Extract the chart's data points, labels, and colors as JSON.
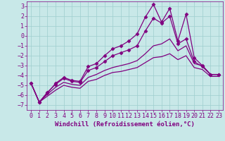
{
  "xlabel": "Windchill (Refroidissement éolien,°C)",
  "xlim": [
    -0.5,
    23.5
  ],
  "ylim": [
    -7.5,
    3.5
  ],
  "xticks": [
    0,
    1,
    2,
    3,
    4,
    5,
    6,
    7,
    8,
    9,
    10,
    11,
    12,
    13,
    14,
    15,
    16,
    17,
    18,
    19,
    20,
    21,
    22,
    23
  ],
  "yticks": [
    -7,
    -6,
    -5,
    -4,
    -3,
    -2,
    -1,
    0,
    1,
    2,
    3
  ],
  "background_color": "#c8e8e8",
  "grid_color": "#9ecece",
  "line_color": "#800080",
  "lines": [
    {
      "x": [
        0,
        1,
        2,
        3,
        4,
        5,
        6,
        7,
        8,
        9,
        10,
        11,
        12,
        13,
        14,
        15,
        16,
        17,
        18,
        19,
        20,
        21,
        22,
        23
      ],
      "y": [
        -4.8,
        -6.7,
        -5.8,
        -4.8,
        -4.2,
        -4.5,
        -4.6,
        -3.1,
        -2.8,
        -2.0,
        -1.3,
        -1.0,
        -0.5,
        0.2,
        1.9,
        3.2,
        1.4,
        2.8,
        -0.5,
        2.2,
        -2.2,
        -3.0,
        -3.9,
        -3.9
      ],
      "marker": "D",
      "marker_size": 2.5,
      "linewidth": 0.9
    },
    {
      "x": [
        0,
        1,
        2,
        3,
        4,
        5,
        6,
        7,
        8,
        9,
        10,
        11,
        12,
        13,
        14,
        15,
        16,
        17,
        18,
        19,
        20,
        21,
        22,
        23
      ],
      "y": [
        -4.8,
        -6.7,
        -5.7,
        -4.9,
        -4.3,
        -4.6,
        -4.7,
        -3.5,
        -3.2,
        -2.6,
        -2.0,
        -1.7,
        -1.4,
        -1.0,
        0.5,
        1.8,
        1.3,
        2.0,
        -0.8,
        -0.3,
        -2.6,
        -3.1,
        -3.9,
        -3.9
      ],
      "marker": "D",
      "marker_size": 2.5,
      "linewidth": 0.9
    },
    {
      "x": [
        0,
        1,
        2,
        3,
        4,
        5,
        6,
        7,
        8,
        9,
        10,
        11,
        12,
        13,
        14,
        15,
        16,
        17,
        18,
        19,
        20,
        21,
        22,
        23
      ],
      "y": [
        -4.8,
        -6.7,
        -5.9,
        -5.2,
        -4.7,
        -4.9,
        -5.0,
        -4.2,
        -3.9,
        -3.5,
        -3.2,
        -3.0,
        -2.8,
        -2.5,
        -1.8,
        -1.0,
        -0.8,
        -0.3,
        -1.5,
        -1.0,
        -2.8,
        -3.0,
        -3.9,
        -3.9
      ],
      "marker": null,
      "linewidth": 0.9
    },
    {
      "x": [
        0,
        1,
        2,
        3,
        4,
        5,
        6,
        7,
        8,
        9,
        10,
        11,
        12,
        13,
        14,
        15,
        16,
        17,
        18,
        19,
        20,
        21,
        22,
        23
      ],
      "y": [
        -4.8,
        -6.7,
        -6.1,
        -5.5,
        -5.0,
        -5.2,
        -5.3,
        -4.6,
        -4.4,
        -4.0,
        -3.7,
        -3.6,
        -3.4,
        -3.2,
        -2.7,
        -2.2,
        -2.1,
        -1.8,
        -2.4,
        -2.0,
        -3.2,
        -3.4,
        -4.1,
        -4.1
      ],
      "marker": null,
      "linewidth": 0.9
    }
  ],
  "font_family": "monospace",
  "tick_fontsize": 6,
  "label_fontsize": 6.5
}
